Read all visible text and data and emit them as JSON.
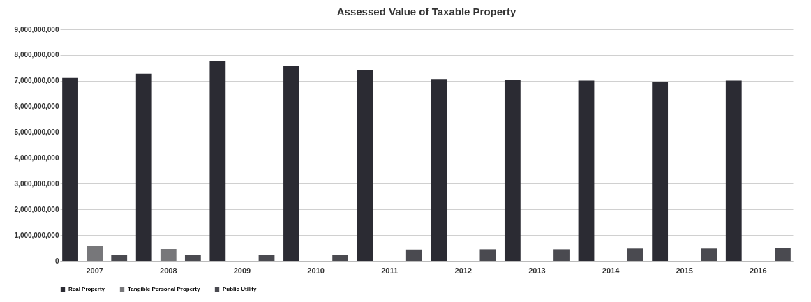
{
  "chart_data": {
    "type": "bar",
    "title": "Assessed Value of Taxable Property",
    "categories": [
      "2007",
      "2008",
      "2009",
      "2010",
      "2011",
      "2012",
      "2013",
      "2014",
      "2015",
      "2016"
    ],
    "series": [
      {
        "name": "Real Property",
        "color": "#2b2b33",
        "values": [
          7110000000,
          7270000000,
          7780000000,
          7560000000,
          7430000000,
          7070000000,
          7030000000,
          7010000000,
          6940000000,
          7010000000
        ]
      },
      {
        "name": "Tangible Personal Property",
        "color": "#77777a",
        "values": [
          590000000,
          460000000,
          0,
          0,
          0,
          0,
          0,
          0,
          0,
          0
        ]
      },
      {
        "name": "Public Utility",
        "color": "#4a4a50",
        "values": [
          230000000,
          230000000,
          230000000,
          240000000,
          440000000,
          450000000,
          450000000,
          480000000,
          480000000,
          500000000
        ]
      }
    ],
    "ylim": [
      0,
      9000000000
    ],
    "yticks": [
      0,
      {
        "value": 1000000000,
        "label": "1,000,000,000"
      },
      {
        "value": 2000000000,
        "label": "2,000,000,000"
      },
      {
        "value": 3000000000,
        "label": "3,000,000,000"
      },
      {
        "value": 4000000000,
        "label": "4,000,000,000"
      },
      {
        "value": 5000000000,
        "label": "5,000,000,000"
      },
      {
        "value": 6000000000,
        "label": "6,000,000,000"
      },
      {
        "value": 7000000000,
        "label": "7,000,000,000"
      },
      {
        "value": 8000000000,
        "label": "8,000,000,000"
      },
      {
        "value": 9000000000,
        "label": "9,000,000,000"
      }
    ],
    "grid": "y",
    "legend": "bottom"
  }
}
